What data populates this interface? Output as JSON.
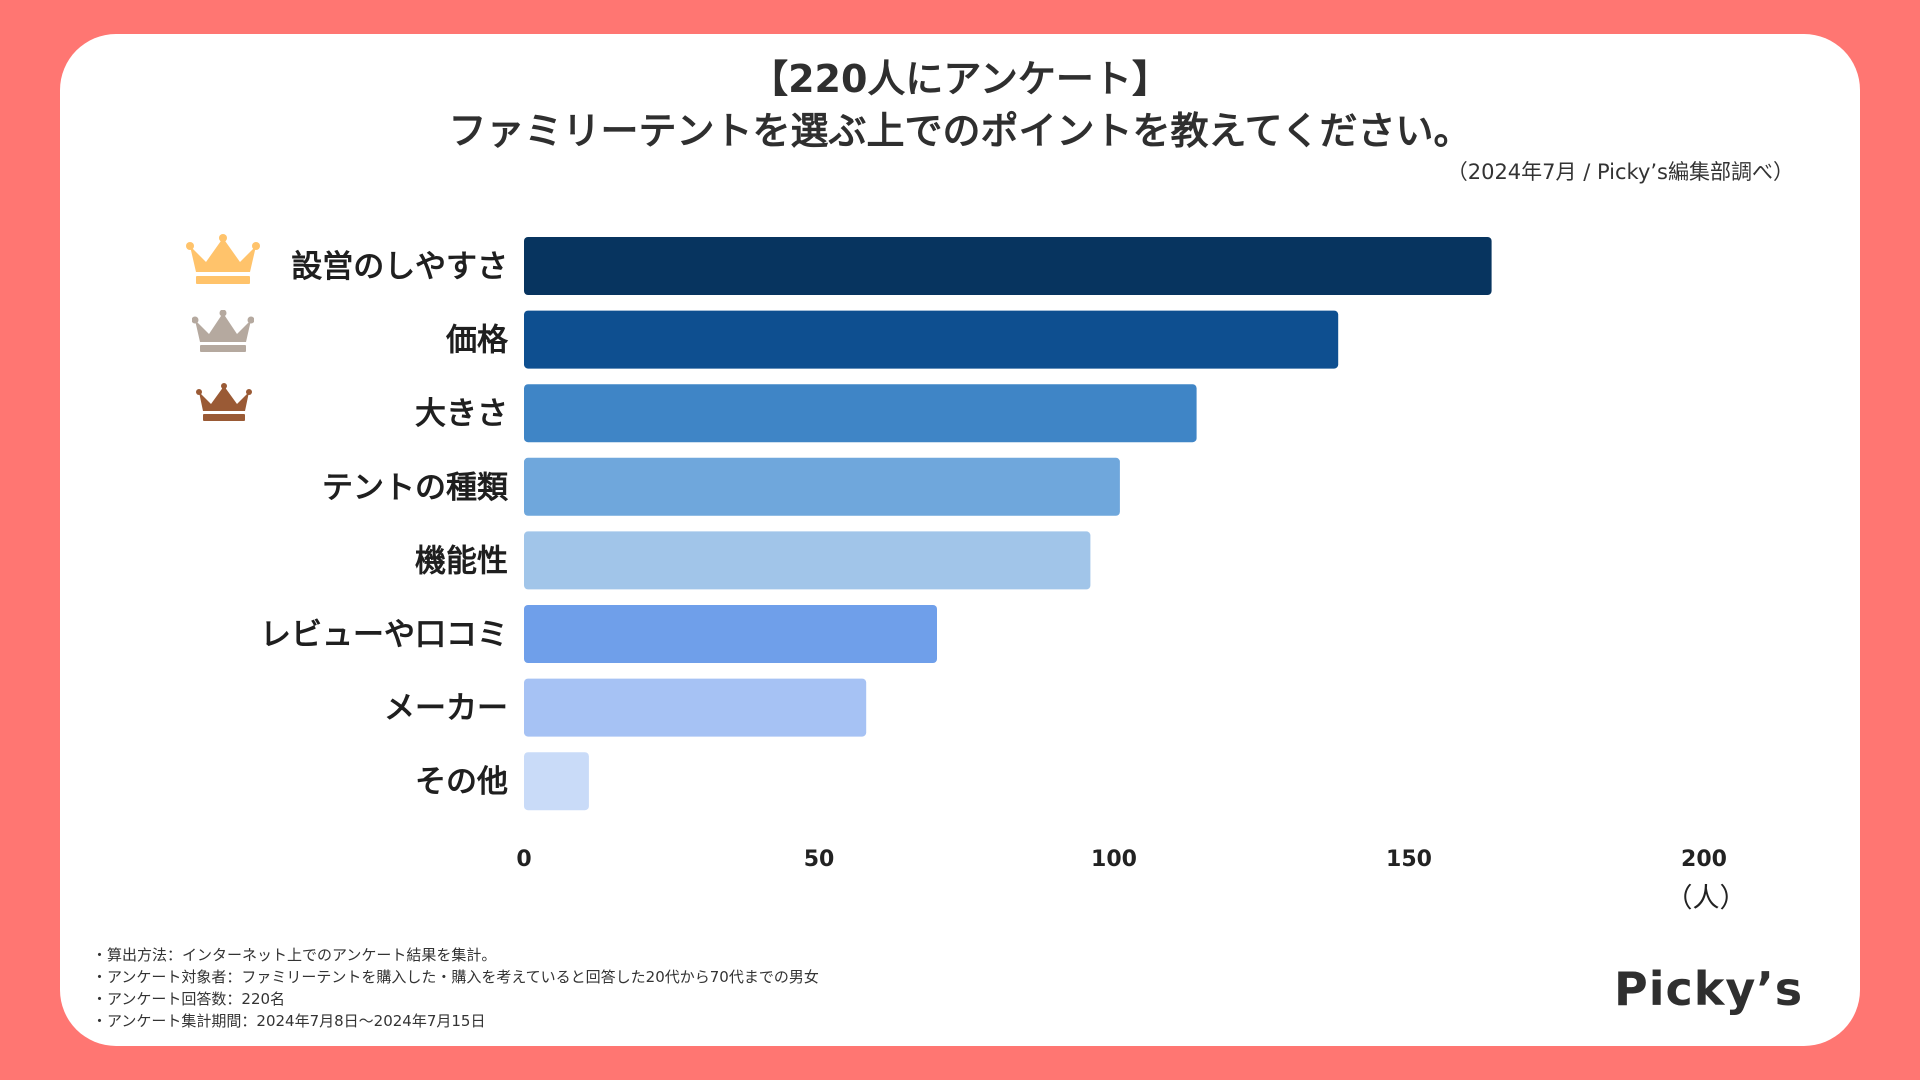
{
  "header": {
    "title_line1": "【220人にアンケート】",
    "title_line2": "ファミリーテントを選ぶ上でのポイントを教えてください。",
    "source": "（2024年7月 / Picky’s編集部調べ）"
  },
  "chart_data": {
    "type": "bar",
    "orientation": "horizontal",
    "categories": [
      "設営のしやすさ",
      "価格",
      "大きさ",
      "テントの種類",
      "機能性",
      "レビューや口コミ",
      "メーカー",
      "その他"
    ],
    "values": [
      164,
      138,
      114,
      101,
      96,
      70,
      58,
      11
    ],
    "colors": [
      "#07345F",
      "#0E4F90",
      "#3F85C6",
      "#6FA7DC",
      "#A1C5E9",
      "#6F9FEA",
      "#A6C2F4",
      "#C9DBF8"
    ],
    "xlim": [
      0,
      200
    ],
    "xticks": [
      "0",
      "50",
      "100",
      "150",
      "200"
    ],
    "xunit": "（人）",
    "ranking_colors": [
      "#FFC36B",
      "#B5A99F",
      "#9A5A35"
    ]
  },
  "notes": [
    "・算出方法：インターネット上でのアンケート結果を集計。",
    "・アンケート対象者：ファミリーテントを購入した・購入を考えていると回答した20代から70代までの男女",
    "・アンケート回答数：220名",
    "・アンケート集計期間：2024年7月8日〜2024年7月15日"
  ],
  "brand": {
    "logo": "Picky’s"
  }
}
